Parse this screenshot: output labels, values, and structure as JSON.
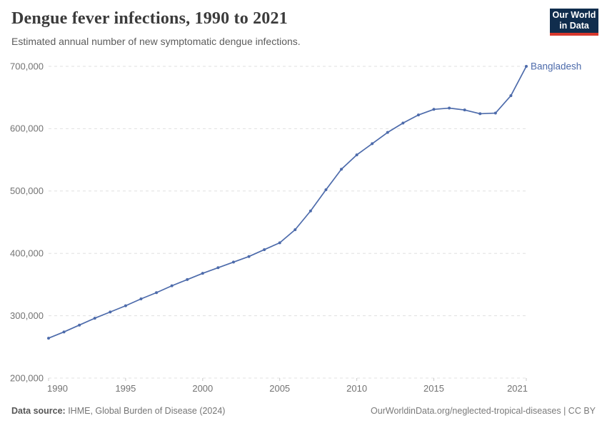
{
  "header": {
    "title": "Dengue fever infections, 1990 to 2021",
    "subtitle": "Estimated annual number of new symptomatic dengue infections."
  },
  "logo": {
    "line1": "Our World",
    "line2": "in Data",
    "bg_color": "#102d4d",
    "accent_color": "#d7382d"
  },
  "footer": {
    "source_label": "Data source:",
    "source_text": " IHME, Global Burden of Disease (2024)",
    "right": "OurWorldinData.org/neglected-tropical-diseases | CC BY"
  },
  "colors": {
    "line": "#4d6bab",
    "grid": "#e0e0e0",
    "tick": "#c9c9c9",
    "axis_text": "#737373",
    "title": "#3b3b3b",
    "subtitle": "#5c5c5c"
  },
  "chart_data": {
    "type": "line",
    "title": "Dengue fever infections, 1990 to 2021",
    "subtitle": "Estimated annual number of new symptomatic dengue infections.",
    "xlabel": "",
    "ylabel": "",
    "grid": "horizontal-dashed",
    "legend_position": "end-of-line-label",
    "ylim": [
      200000,
      700000
    ],
    "x": [
      1990,
      1991,
      1992,
      1993,
      1994,
      1995,
      1996,
      1997,
      1998,
      1999,
      2000,
      2001,
      2002,
      2003,
      2004,
      2005,
      2006,
      2007,
      2008,
      2009,
      2010,
      2011,
      2012,
      2013,
      2014,
      2015,
      2016,
      2017,
      2018,
      2019,
      2020,
      2021
    ],
    "series": [
      {
        "name": "Bangladesh",
        "color": "#4d6bab",
        "values": [
          264000,
          274000,
          285000,
          296000,
          306000,
          316000,
          327000,
          337000,
          348000,
          358000,
          368000,
          377000,
          386000,
          395000,
          406000,
          417000,
          438000,
          468000,
          502000,
          535000,
          558000,
          576000,
          594000,
          609000,
          622000,
          631000,
          633000,
          630000,
          624000,
          625000,
          653000,
          700000
        ]
      }
    ],
    "yticks": [
      {
        "value": 200000,
        "label": "200,000"
      },
      {
        "value": 300000,
        "label": "300,000"
      },
      {
        "value": 400000,
        "label": "400,000"
      },
      {
        "value": 500000,
        "label": "500,000"
      },
      {
        "value": 600000,
        "label": "600,000"
      },
      {
        "value": 700000,
        "label": "700,000"
      }
    ],
    "xticks": [
      {
        "value": 1990,
        "label": "1990"
      },
      {
        "value": 1995,
        "label": "1995"
      },
      {
        "value": 2000,
        "label": "2000"
      },
      {
        "value": 2005,
        "label": "2005"
      },
      {
        "value": 2010,
        "label": "2010"
      },
      {
        "value": 2015,
        "label": "2015"
      },
      {
        "value": 2021,
        "label": "2021"
      }
    ]
  }
}
